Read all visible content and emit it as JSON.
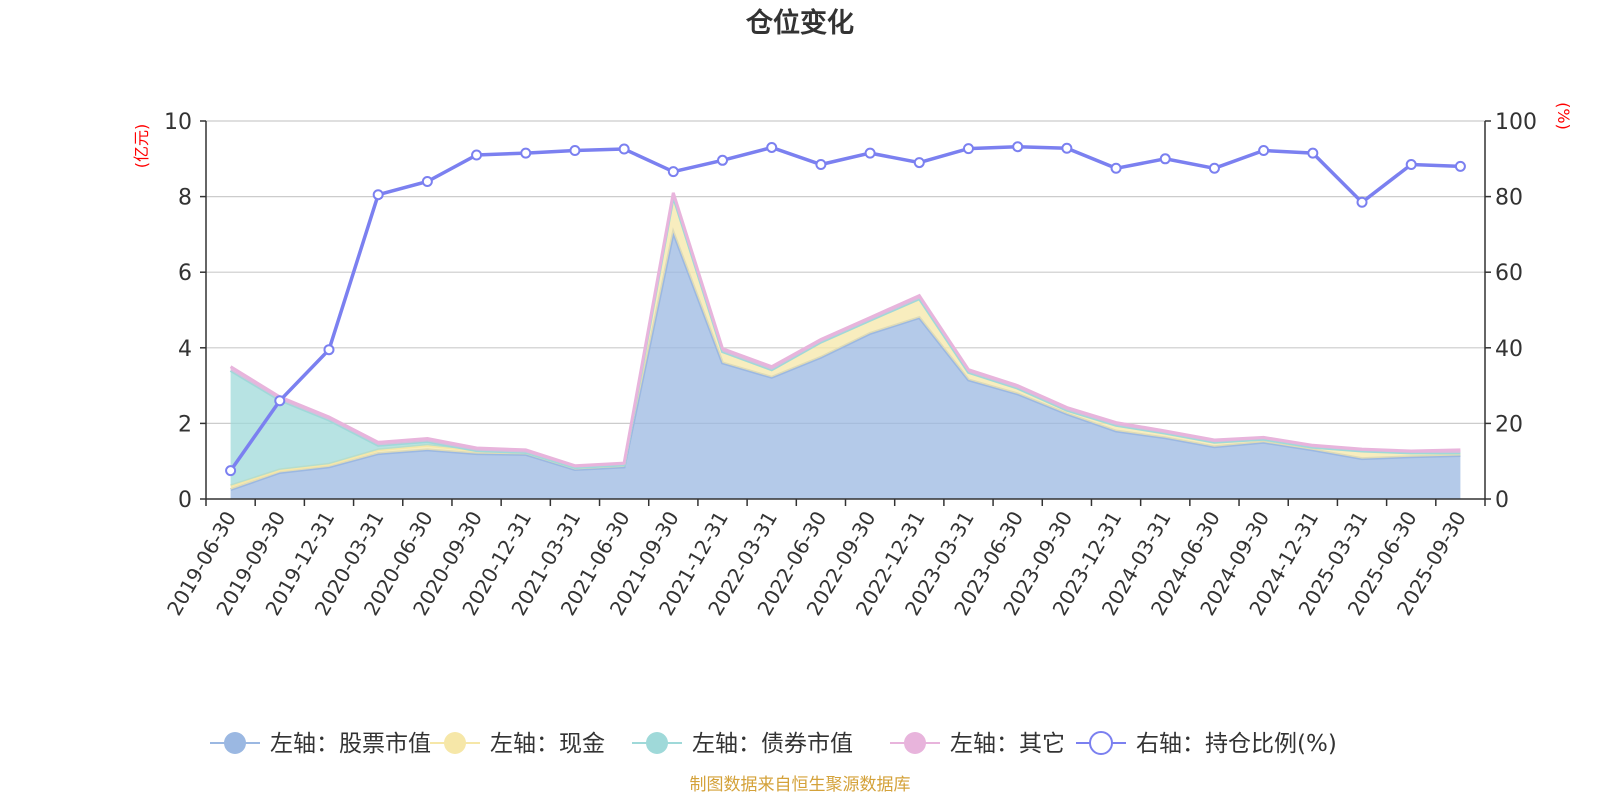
{
  "chart_data": {
    "type": "area",
    "title": "仓位变化",
    "left_axis_unit": "(亿元)",
    "right_axis_unit": "(%)",
    "ylim_left": [
      0,
      10
    ],
    "yticks_left": [
      0,
      2,
      4,
      6,
      8,
      10
    ],
    "ylim_right": [
      0,
      100
    ],
    "yticks_right": [
      0,
      20,
      40,
      60,
      80,
      100
    ],
    "grid": true,
    "legend_position": "bottom",
    "x": [
      "2019-06-30",
      "2019-09-30",
      "2019-12-31",
      "2020-03-31",
      "2020-06-30",
      "2020-09-30",
      "2020-12-31",
      "2021-03-31",
      "2021-06-30",
      "2021-09-30",
      "2021-12-31",
      "2022-03-31",
      "2022-06-30",
      "2022-09-30",
      "2022-12-31",
      "2023-03-31",
      "2023-06-30",
      "2023-09-30",
      "2023-12-31",
      "2024-03-31",
      "2024-06-30",
      "2024-09-30",
      "2024-12-31",
      "2025-03-31",
      "2025-06-30",
      "2025-09-30"
    ],
    "series": [
      {
        "name": "左轴：股票市值",
        "axis": "left",
        "kind": "area",
        "color": "#9bb8e2",
        "values": [
          0.25,
          0.7,
          0.85,
          1.2,
          1.3,
          1.2,
          1.18,
          0.78,
          0.85,
          7.05,
          3.6,
          3.22,
          3.75,
          4.38,
          4.8,
          3.15,
          2.78,
          2.25,
          1.8,
          1.62,
          1.38,
          1.5,
          1.3,
          1.07,
          1.12,
          1.15
        ]
      },
      {
        "name": "左轴：现金",
        "axis": "left",
        "kind": "area",
        "color": "#f6e7a8",
        "values": [
          0.1,
          0.07,
          0.07,
          0.1,
          0.12,
          0.08,
          0.05,
          0.05,
          0.05,
          0.95,
          0.3,
          0.2,
          0.4,
          0.35,
          0.5,
          0.2,
          0.15,
          0.1,
          0.15,
          0.12,
          0.12,
          0.08,
          0.07,
          0.2,
          0.1,
          0.07
        ]
      },
      {
        "name": "左轴：债券市值",
        "axis": "left",
        "kind": "area",
        "color": "#9fd9d9",
        "values": [
          3.05,
          1.85,
          1.17,
          0.12,
          0.1,
          0,
          0,
          0,
          0,
          0,
          0,
          0,
          0,
          0,
          0,
          0,
          0,
          0,
          0,
          0,
          0,
          0,
          0,
          0,
          0,
          0
        ]
      },
      {
        "name": "左轴：其它",
        "axis": "left",
        "kind": "area",
        "color": "#e8b4dc",
        "values": [
          0.1,
          0.08,
          0.08,
          0.08,
          0.08,
          0.07,
          0.07,
          0.05,
          0.05,
          0.1,
          0.08,
          0.08,
          0.07,
          0.07,
          0.08,
          0.07,
          0.07,
          0.07,
          0.07,
          0.06,
          0.06,
          0.05,
          0.05,
          0.05,
          0.05,
          0.08
        ]
      },
      {
        "name": "右轴：持仓比例(%)",
        "axis": "right",
        "kind": "line",
        "color": "#7b80f0",
        "values": [
          7.5,
          26,
          39.5,
          80.5,
          84,
          91,
          91.5,
          92.2,
          92.6,
          86.6,
          89.6,
          93,
          88.5,
          91.5,
          89,
          92.7,
          93.2,
          92.8,
          87.5,
          90,
          87.5,
          92.2,
          91.5,
          78.5,
          88.5,
          88
        ]
      }
    ],
    "source_note": "制图数据来自恒生聚源数据库"
  }
}
